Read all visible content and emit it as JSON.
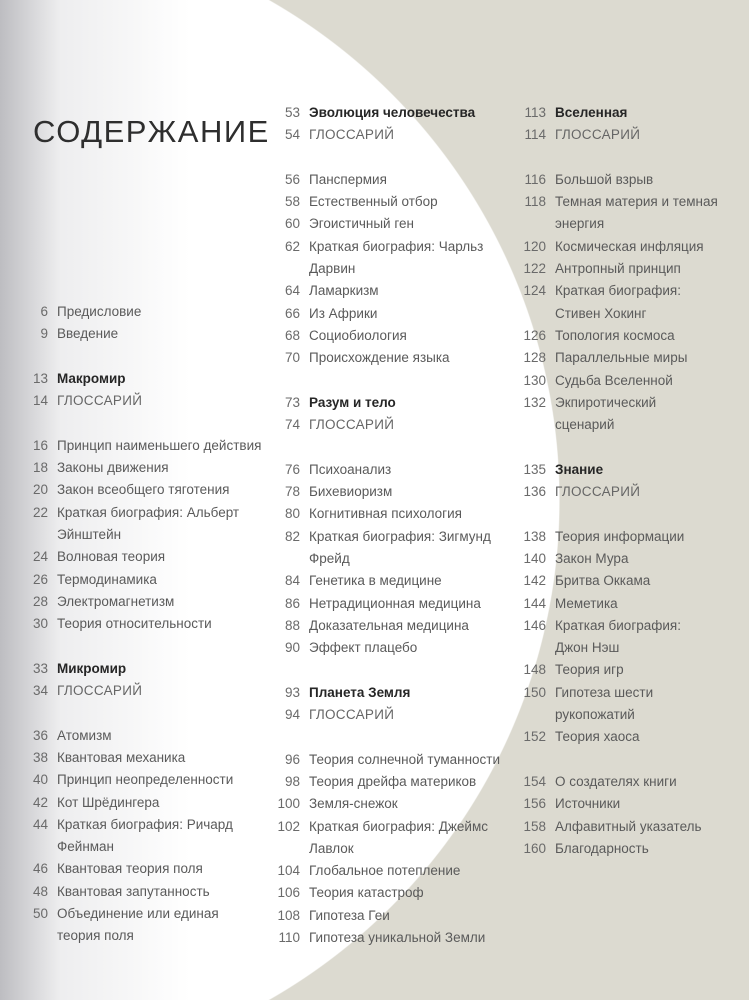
{
  "title": "СОДЕРЖАНИЕ",
  "colors": {
    "background": "#dcdad0",
    "circle": "#ffffff",
    "text": "#5a5a5a",
    "heading": "#262626"
  },
  "columns": [
    [
      {
        "num": "6",
        "title": "Предисловие"
      },
      {
        "num": "9",
        "title": "Введение"
      },
      {
        "spacer": true
      },
      {
        "num": "13",
        "title": "Макромир",
        "bold": true
      },
      {
        "num": "14",
        "title": "ГЛОССАРИЙ",
        "gloss": true
      },
      {
        "spacer": true
      },
      {
        "num": "16",
        "title": "Принцип наименьшего действия"
      },
      {
        "num": "18",
        "title": "Законы движения"
      },
      {
        "num": "20",
        "title": "Закон всеобщего тяготения"
      },
      {
        "num": "22",
        "title": "Краткая биография: Альберт"
      },
      {
        "title": "Эйнштейн"
      },
      {
        "num": "24",
        "title": "Волновая теория"
      },
      {
        "num": "26",
        "title": "Термодинамика"
      },
      {
        "num": "28",
        "title": "Электромагнетизм"
      },
      {
        "num": "30",
        "title": "Теория относительности"
      },
      {
        "spacer": true
      },
      {
        "num": "33",
        "title": "Микромир",
        "bold": true
      },
      {
        "num": "34",
        "title": "ГЛОССАРИЙ",
        "gloss": true
      },
      {
        "spacer": true
      },
      {
        "num": "36",
        "title": "Атомизм"
      },
      {
        "num": "38",
        "title": "Квантовая механика"
      },
      {
        "num": "40",
        "title": "Принцип неопределенности"
      },
      {
        "num": "42",
        "title": "Кот Шрёдингера"
      },
      {
        "num": "44",
        "title": "Краткая биография: Ричард"
      },
      {
        "title": "Фейнман"
      },
      {
        "num": "46",
        "title": "Квантовая теория поля"
      },
      {
        "num": "48",
        "title": "Квантовая запутанность"
      },
      {
        "num": "50",
        "title": "Объединение или единая"
      },
      {
        "title": "теория поля"
      }
    ],
    [
      {
        "num": "53",
        "title": "Эволюция человечества",
        "bold": true
      },
      {
        "num": "54",
        "title": "ГЛОССАРИЙ",
        "gloss": true
      },
      {
        "spacer": true
      },
      {
        "num": "56",
        "title": "Панспермия"
      },
      {
        "num": "58",
        "title": "Естественный отбор"
      },
      {
        "num": "60",
        "title": "Эгоистичный ген"
      },
      {
        "num": "62",
        "title": "Краткая биография: Чарльз"
      },
      {
        "title": "Дарвин"
      },
      {
        "num": "64",
        "title": "Ламаркизм"
      },
      {
        "num": "66",
        "title": "Из Африки"
      },
      {
        "num": "68",
        "title": "Социобиология"
      },
      {
        "num": "70",
        "title": "Происхождение языка"
      },
      {
        "spacer": true
      },
      {
        "num": "73",
        "title": "Разум и тело",
        "bold": true
      },
      {
        "num": "74",
        "title": "ГЛОССАРИЙ",
        "gloss": true
      },
      {
        "spacer": true
      },
      {
        "num": "76",
        "title": "Психоанализ"
      },
      {
        "num": "78",
        "title": "Бихевиоризм"
      },
      {
        "num": "80",
        "title": "Когнитивная психология"
      },
      {
        "num": "82",
        "title": "Краткая биография: Зигмунд"
      },
      {
        "title": "Фрейд"
      },
      {
        "num": "84",
        "title": "Генетика в медицине"
      },
      {
        "num": "86",
        "title": "Нетрадиционная медицина"
      },
      {
        "num": "88",
        "title": "Доказательная медицина"
      },
      {
        "num": "90",
        "title": "Эффект плацебо"
      },
      {
        "spacer": true
      },
      {
        "num": "93",
        "title": "Планета Земля",
        "bold": true
      },
      {
        "num": "94",
        "title": "ГЛОССАРИЙ",
        "gloss": true
      },
      {
        "spacer": true
      },
      {
        "num": "96",
        "title": "Теория солнечной туманности"
      },
      {
        "num": "98",
        "title": "Теория дрейфа материков"
      },
      {
        "num": "100",
        "title": "Земля-снежок"
      },
      {
        "num": "102",
        "title": "Краткая биография: Джеймс"
      },
      {
        "title": "Лавлок"
      },
      {
        "num": "104",
        "title": "Глобальное потепление"
      },
      {
        "num": "106",
        "title": "Теория катастроф"
      },
      {
        "num": "108",
        "title": "Гипотеза Геи"
      },
      {
        "num": "110",
        "title": "Гипотеза уникальной Земли"
      }
    ],
    [
      {
        "num": "113",
        "title": "Вселенная",
        "bold": true
      },
      {
        "num": "114",
        "title": "ГЛОССАРИЙ",
        "gloss": true
      },
      {
        "spacer": true
      },
      {
        "num": "116",
        "title": "Большой взрыв"
      },
      {
        "num": "118",
        "title": "Темная материя и темная"
      },
      {
        "title": "энергия"
      },
      {
        "num": "120",
        "title": "Космическая инфляция"
      },
      {
        "num": "122",
        "title": "Антропный принцип"
      },
      {
        "num": "124",
        "title": "Краткая биография:"
      },
      {
        "title": "Стивен Хокинг"
      },
      {
        "num": "126",
        "title": "Топология космоса"
      },
      {
        "num": "128",
        "title": "Параллельные миры"
      },
      {
        "num": "130",
        "title": "Судьба Вселенной"
      },
      {
        "num": "132",
        "title": "Экпиротический"
      },
      {
        "title": "сценарий"
      },
      {
        "spacer": true
      },
      {
        "num": "135",
        "title": "Знание",
        "bold": true
      },
      {
        "num": "136",
        "title": "ГЛОССАРИЙ",
        "gloss": true
      },
      {
        "spacer": true
      },
      {
        "num": "138",
        "title": "Теория информации"
      },
      {
        "num": "140",
        "title": "Закон Мура"
      },
      {
        "num": "142",
        "title": "Бритва Оккама"
      },
      {
        "num": "144",
        "title": "Меметика"
      },
      {
        "num": "146",
        "title": "Краткая биография:"
      },
      {
        "title": "Джон Нэш"
      },
      {
        "num": "148",
        "title": "Теория игр"
      },
      {
        "num": "150",
        "title": "Гипотеза шести"
      },
      {
        "title": "рукопожатий"
      },
      {
        "num": "152",
        "title": "Теория хаоса"
      },
      {
        "spacer": true
      },
      {
        "num": "154",
        "title": "О создателях книги"
      },
      {
        "num": "156",
        "title": "Источники"
      },
      {
        "num": "158",
        "title": "Алфавитный указатель"
      },
      {
        "num": "160",
        "title": "Благодарность"
      }
    ]
  ]
}
